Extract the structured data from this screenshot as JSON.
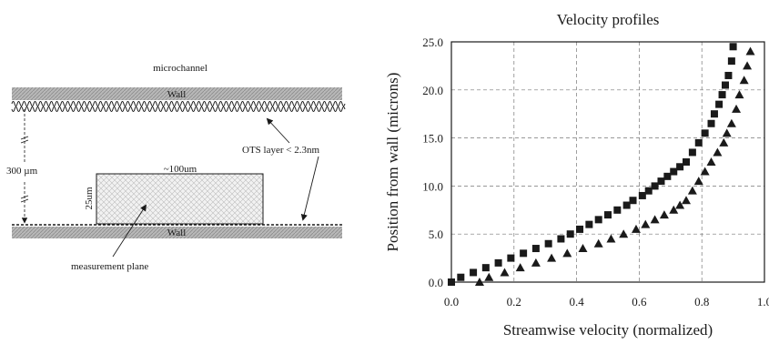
{
  "diagram": {
    "title": "microchannel",
    "wall_top_label": "Wall",
    "wall_bottom_label": "Wall",
    "gap_label": "300 µm",
    "box_width_label": "~100um",
    "box_height_label": "25um",
    "ots_label": "OTS layer  < 2.3nm",
    "measurement_label": "measurement plane"
  },
  "chart_data": {
    "type": "scatter",
    "title": "Velocity profiles",
    "xlabel": "Streamwise velocity (normalized)",
    "ylabel": "Position from wall (microns)",
    "xlim": [
      0,
      1.0
    ],
    "ylim": [
      0,
      25
    ],
    "xticks": [
      "0.0",
      "0.2",
      "0.4",
      "0.6",
      "0.8",
      "1.0"
    ],
    "yticks": [
      "0.0",
      "5.0",
      "10.0",
      "15.0",
      "20.0",
      "25.0"
    ],
    "grid": true,
    "series": [
      {
        "marker": "square",
        "x": [
          0.0,
          0.03,
          0.07,
          0.11,
          0.15,
          0.19,
          0.23,
          0.27,
          0.31,
          0.35,
          0.38,
          0.41,
          0.44,
          0.47,
          0.5,
          0.53,
          0.56,
          0.58,
          0.61,
          0.63,
          0.65,
          0.67,
          0.69,
          0.71,
          0.73,
          0.75,
          0.77,
          0.79,
          0.81,
          0.83,
          0.84,
          0.855,
          0.865,
          0.875,
          0.885,
          0.895,
          0.9
        ],
        "y": [
          0.0,
          0.5,
          1.0,
          1.5,
          2.0,
          2.5,
          3.0,
          3.5,
          4.0,
          4.5,
          5.0,
          5.5,
          6.0,
          6.5,
          7.0,
          7.5,
          8.0,
          8.5,
          9.0,
          9.5,
          10.0,
          10.5,
          11.0,
          11.5,
          12.0,
          12.5,
          13.5,
          14.5,
          15.5,
          16.5,
          17.5,
          18.5,
          19.5,
          20.5,
          21.5,
          23.0,
          24.5
        ]
      },
      {
        "marker": "triangle",
        "x": [
          0.09,
          0.12,
          0.17,
          0.22,
          0.27,
          0.32,
          0.37,
          0.42,
          0.47,
          0.51,
          0.55,
          0.59,
          0.62,
          0.65,
          0.68,
          0.71,
          0.73,
          0.75,
          0.77,
          0.79,
          0.81,
          0.83,
          0.85,
          0.87,
          0.88,
          0.895,
          0.91,
          0.92,
          0.935,
          0.945,
          0.955
        ],
        "y": [
          0.0,
          0.5,
          1.0,
          1.5,
          2.0,
          2.5,
          3.0,
          3.5,
          4.0,
          4.5,
          5.0,
          5.5,
          6.0,
          6.5,
          7.0,
          7.5,
          8.0,
          8.5,
          9.5,
          10.5,
          11.5,
          12.5,
          13.5,
          14.5,
          15.5,
          16.5,
          18.0,
          19.5,
          21.0,
          22.5,
          24.0
        ]
      }
    ]
  }
}
